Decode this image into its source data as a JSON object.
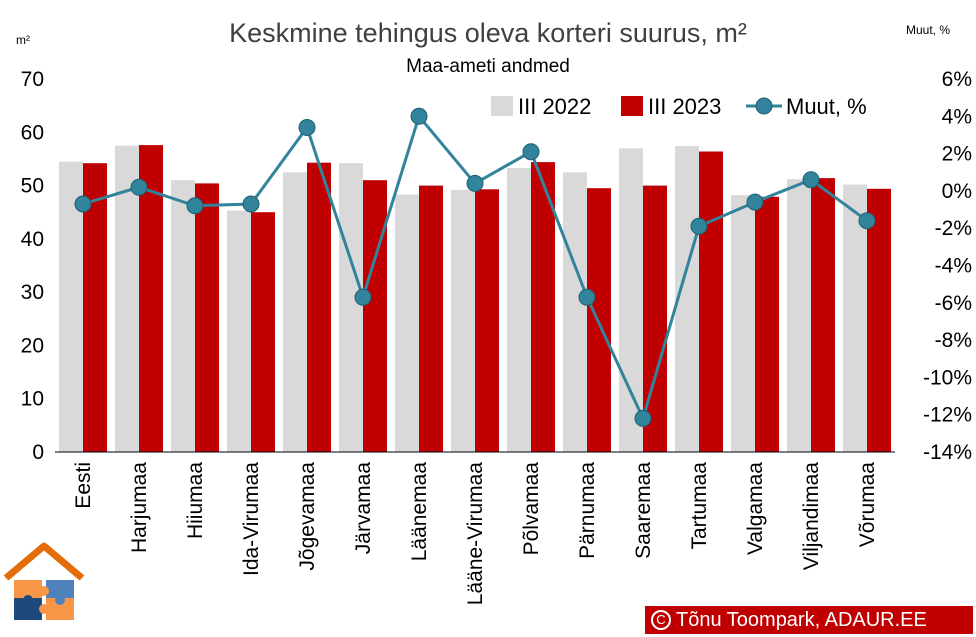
{
  "chart_data": {
    "type": "bar",
    "title": "Keskmine tehingus oleva korteri suurus, m²",
    "subtitle": "Maa-ameti andmed",
    "ylabel_left": "m²",
    "ylabel_right": "Muut, %",
    "categories": [
      "Eesti",
      "Harjumaa",
      "Hiiumaa",
      "Ida-Virumaa",
      "Jõgevamaa",
      "Järvamaa",
      "Läänemaa",
      "Lääne-Virumaa",
      "Põlvamaa",
      "Pärnumaa",
      "Saaremaa",
      "Tartumaa",
      "Valgamaa",
      "Viljandimaa",
      "Võrumaa"
    ],
    "series": [
      {
        "name": "III 2022",
        "type": "bar",
        "axis": "left",
        "color": "#d9d9d9",
        "values": [
          54.5,
          57.5,
          51.0,
          45.3,
          52.5,
          54.2,
          48.3,
          49.2,
          53.3,
          52.5,
          57.0,
          57.4,
          48.2,
          51.2,
          50.2
        ]
      },
      {
        "name": "III 2023",
        "type": "bar",
        "axis": "left",
        "color": "#c00000",
        "values": [
          54.2,
          57.6,
          50.4,
          45.0,
          54.3,
          51.0,
          50.0,
          49.3,
          54.4,
          49.5,
          50.0,
          56.4,
          47.9,
          51.4,
          49.4
        ]
      },
      {
        "name": "Muut, %",
        "type": "line",
        "axis": "right",
        "color": "#31849b",
        "values": [
          -0.7,
          0.2,
          -0.8,
          -0.7,
          3.4,
          -5.7,
          4.0,
          0.4,
          2.1,
          -5.7,
          -12.2,
          -1.9,
          -0.6,
          0.6,
          -1.6
        ]
      }
    ],
    "y_left": {
      "min": 0,
      "max": 70,
      "step": 10,
      "tick_labels": [
        "0",
        "10",
        "20",
        "30",
        "40",
        "50",
        "60",
        "70"
      ]
    },
    "y_right": {
      "min": -14,
      "max": 6,
      "step": 2,
      "tick_labels": [
        "-14%",
        "-12%",
        "-10%",
        "-8%",
        "-6%",
        "-4%",
        "-2%",
        "0%",
        "2%",
        "4%",
        "6%"
      ]
    },
    "grid": false,
    "legend_position": "top-right"
  },
  "credit": {
    "symbol": "C",
    "text": "Tõnu Toompark, ADAUR.EE"
  },
  "colors": {
    "logo_roof": "#e46c0a",
    "logo_puzzle_orange": "#f79646",
    "logo_puzzle_blue": "#4f81bd",
    "logo_puzzle_navy": "#1f497d"
  }
}
